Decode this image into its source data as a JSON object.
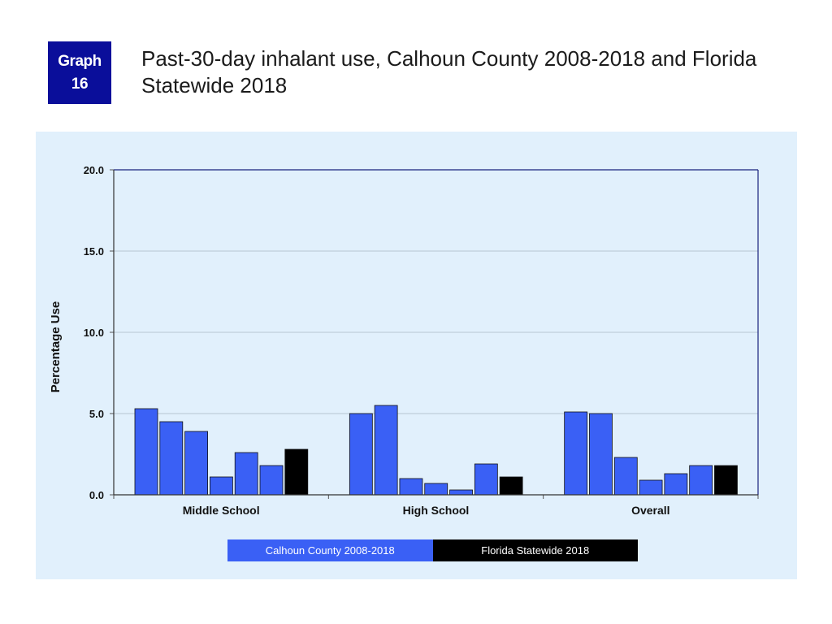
{
  "badge": {
    "line1": "Graph",
    "line2": "16"
  },
  "title": "Past-30-day inhalant use, Calhoun County 2008-2018 and Florida Statewide 2018",
  "colors": {
    "calhoun": "#3a60f5",
    "florida": "#000000",
    "panel": "#e1f0fc",
    "badge": "#0a0e9a"
  },
  "chart_data": {
    "type": "bar",
    "categories": [
      "Middle School",
      "High School",
      "Overall"
    ],
    "series": [
      {
        "values": [
          5.3,
          5.0,
          5.1
        ]
      },
      {
        "values": [
          4.5,
          5.5,
          5.0
        ]
      },
      {
        "values": [
          3.9,
          1.0,
          2.3
        ]
      },
      {
        "values": [
          1.1,
          0.7,
          0.9
        ]
      },
      {
        "values": [
          2.6,
          0.3,
          1.3
        ]
      },
      {
        "values": [
          1.8,
          1.9,
          1.8
        ]
      },
      {
        "values": [
          2.8,
          1.1,
          1.8
        ]
      }
    ],
    "series_colors": [
      "#3a60f5",
      "#3a60f5",
      "#3a60f5",
      "#3a60f5",
      "#3a60f5",
      "#3a60f5",
      "#000000"
    ],
    "ylabel": "Percentage Use",
    "ylim": [
      0,
      20
    ],
    "yticks": [
      "0.0",
      "5.0",
      "10.0",
      "15.0",
      "20.0"
    ],
    "grid": true,
    "legend": {
      "position": "bottom",
      "items": [
        {
          "label": "Calhoun County 2008-2018",
          "color": "#3a60f5"
        },
        {
          "label": "Florida Statewide 2018",
          "color": "#000000"
        }
      ]
    }
  }
}
